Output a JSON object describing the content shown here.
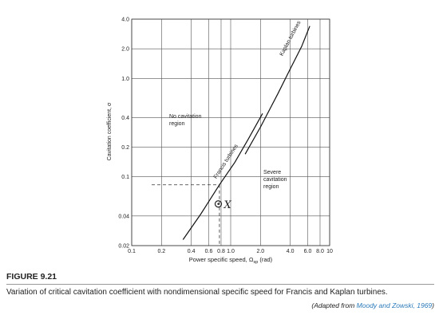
{
  "chart_data": {
    "type": "line",
    "xlabel": {
      "main": "Power specific speed, Ω",
      "sub": "sp",
      "unit": " (rad)"
    },
    "ylabel": "Cavitation coefficient, σ",
    "xscale": "log",
    "yscale": "log",
    "grid": true,
    "xlim": [
      0.1,
      10
    ],
    "ylim": [
      0.02,
      4.0
    ],
    "xticks": [
      0.1,
      0.2,
      0.4,
      0.6,
      0.8,
      {
        "value": 1,
        "label": "1.0"
      },
      {
        "value": 2,
        "label": "2.0"
      },
      {
        "value": 4,
        "label": "4.0"
      },
      {
        "value": 6,
        "label": "6.0"
      },
      {
        "value": 8,
        "label": "8.0"
      },
      10
    ],
    "yticks": [
      0.02,
      0.04,
      0.1,
      0.2,
      0.4,
      {
        "value": 1,
        "label": "1.0"
      },
      {
        "value": 2,
        "label": "2.0"
      },
      {
        "value": 4,
        "label": "4.0"
      }
    ],
    "series": [
      {
        "name": "Francis turbines",
        "color": "#111111",
        "x": [
          0.33,
          0.5,
          0.77,
          1.1,
          1.5,
          2.1
        ],
        "y": [
          0.023,
          0.042,
          0.083,
          0.14,
          0.24,
          0.44
        ]
      },
      {
        "name": "Kaplan turbines",
        "color": "#111111",
        "x": [
          1.4,
          2.0,
          3.0,
          4.0,
          5.2,
          6.3
        ],
        "y": [
          0.17,
          0.32,
          0.7,
          1.25,
          2.1,
          3.4
        ]
      }
    ],
    "regions": [
      [
        "No cavitation",
        "region"
      ],
      [
        "Severe",
        "cavitation",
        "region"
      ]
    ],
    "reference": {
      "x": 0.77,
      "y": 0.083
    },
    "marker": {
      "x": 0.75,
      "y": 0.053,
      "label": "X"
    }
  },
  "caption": {
    "figure": "FIGURE 9.21",
    "text": "Variation of critical cavitation coefficient with nondimensional specific speed for Francis and Kaplan turbines.",
    "source": {
      "prefix": "(Adapted from ",
      "link": "Moody and Zowski, 1969",
      "suffix": ")"
    }
  }
}
